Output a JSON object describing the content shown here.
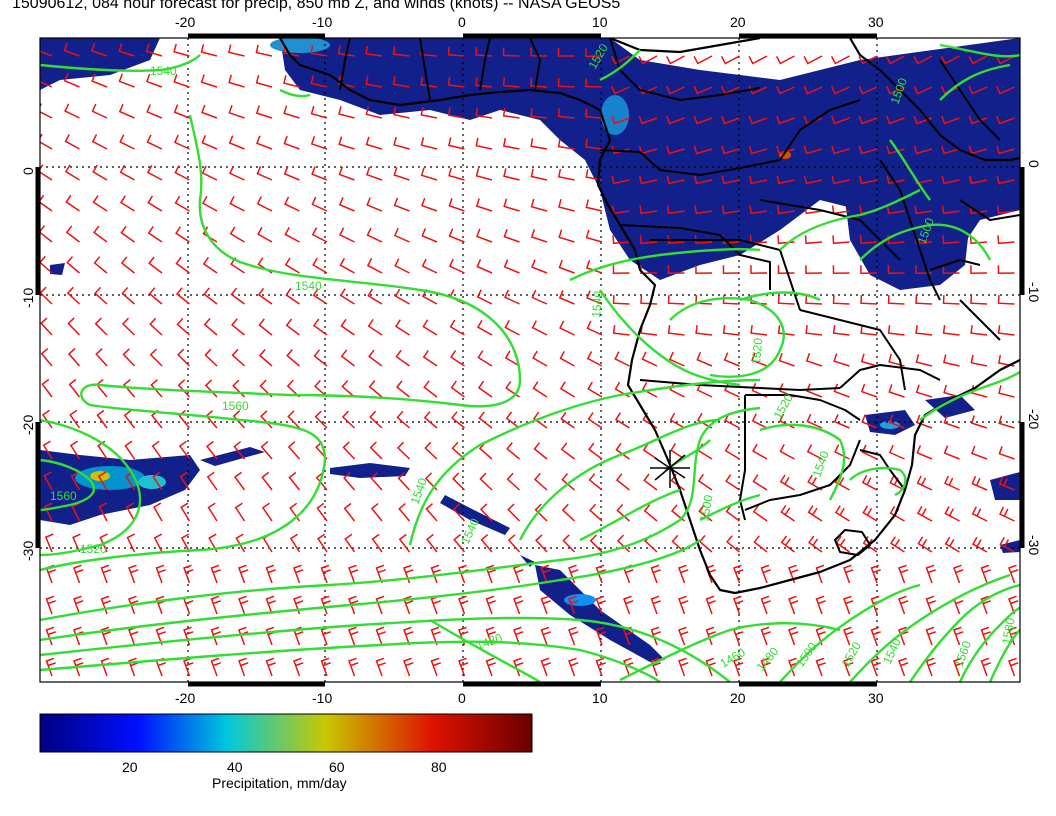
{
  "title": "15090612, 084 hour forecast for precip, 850 mb Z, and winds (knots) -- NASA GEOS5",
  "map": {
    "lon_range": [
      -30,
      40
    ],
    "lat_range": [
      -40,
      10
    ],
    "lon_ticks": [
      "-20",
      "-10",
      "0",
      "10",
      "20",
      "30"
    ],
    "lat_ticks_left": [
      "0",
      "-10",
      "-20",
      "-30"
    ],
    "lat_ticks_right": [
      "0",
      "-10",
      "-20",
      "-30"
    ],
    "contour_labels": [
      "1540",
      "1520",
      "1500",
      "1540",
      "1560",
      "1560",
      "1540",
      "1520",
      "1540",
      "1540",
      "1520",
      "1500",
      "1520",
      "1540",
      "1500",
      "1480",
      "1460",
      "1480",
      "1500",
      "1520",
      "1540",
      "1560",
      "1580"
    ],
    "colors": {
      "precip_low": "#12208c",
      "contour": "#33dd33",
      "barb": "#ee1111",
      "coast": "#000000",
      "grid": "#000000"
    }
  },
  "colorbar": {
    "label": "Precipitation, mm/day",
    "ticks": [
      "20",
      "40",
      "60",
      "80"
    ],
    "range": [
      0,
      100
    ],
    "stops": [
      "#000080",
      "#0000ff",
      "#00ccdd",
      "#cccc00",
      "#dd0000",
      "#700000"
    ]
  }
}
